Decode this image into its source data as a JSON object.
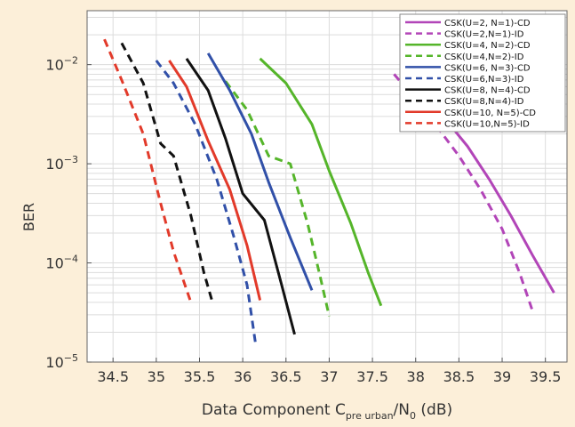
{
  "chart_data": {
    "type": "line",
    "title": "",
    "xlabel": "Data Component C",
    "xlabel_sub": "pre urban",
    "xlabel_mid": "/N",
    "xlabel_sub2": "0",
    "xlabel_end": " (dB)",
    "ylabel": "BER",
    "xlim": [
      34.2,
      39.75
    ],
    "ylim": [
      1e-05,
      0.035
    ],
    "yscale": "log",
    "grid": true,
    "legend_position": "top-right",
    "xticks": [
      34.5,
      35,
      35.5,
      36,
      36.5,
      37,
      37.5,
      38,
      38.5,
      39,
      39.5
    ],
    "xtick_labels": [
      "34.5",
      "35",
      "35.5",
      "36",
      "36.5",
      "37",
      "37.5",
      "38",
      "38.5",
      "39",
      "39.5"
    ],
    "yticks": [
      {
        "value": 1e-05,
        "base": "10",
        "exp": "−5"
      },
      {
        "value": 0.0001,
        "base": "10",
        "exp": "−4"
      },
      {
        "value": 0.001,
        "base": "10",
        "exp": "−3"
      },
      {
        "value": 0.01,
        "base": "10",
        "exp": "−2"
      }
    ],
    "series": [
      {
        "name": "CSK(U=2, N=1)-CD",
        "color": "#b245b8",
        "dash": "solid",
        "x": [
          37.85,
          38.2,
          38.6,
          38.85,
          39.1,
          39.35,
          39.6
        ],
        "y": [
          0.009,
          0.004,
          0.0015,
          0.0007,
          0.0003,
          0.00012,
          5e-05
        ]
      },
      {
        "name": "CSK(U=2,N=1)-ID",
        "color": "#b245b8",
        "dash": "dashed",
        "x": [
          37.75,
          38.1,
          38.5,
          38.75,
          39.0,
          39.2,
          39.35
        ],
        "y": [
          0.008,
          0.0035,
          0.0012,
          0.00055,
          0.00022,
          8e-05,
          3.3e-05
        ]
      },
      {
        "name": "CSK(U=4, N=2)-CD",
        "color": "#55b52a",
        "dash": "solid",
        "x": [
          36.2,
          36.5,
          36.8,
          37.0,
          37.25,
          37.45,
          37.6
        ],
        "y": [
          0.0115,
          0.0065,
          0.0025,
          0.00085,
          0.00025,
          8e-05,
          3.7e-05
        ]
      },
      {
        "name": "CSK(U=4,N=2)-ID",
        "color": "#55b52a",
        "dash": "dashed",
        "x": [
          35.8,
          36.05,
          36.3,
          36.55,
          36.75,
          36.9,
          37.0
        ],
        "y": [
          0.0068,
          0.0035,
          0.0012,
          0.001,
          0.00025,
          7e-05,
          2.9e-05
        ]
      },
      {
        "name": "CSK(U=6, N=3)-CD",
        "color": "#3150a8",
        "dash": "solid",
        "x": [
          35.6,
          35.85,
          36.1,
          36.3,
          36.55,
          36.8
        ],
        "y": [
          0.013,
          0.0055,
          0.002,
          0.00065,
          0.00018,
          5.3e-05
        ]
      },
      {
        "name": "CSK(U=6,N=3)-ID",
        "color": "#3150a8",
        "dash": "dashed",
        "x": [
          35.0,
          35.2,
          35.45,
          35.7,
          35.9,
          36.05,
          36.15
        ],
        "y": [
          0.011,
          0.0065,
          0.0025,
          0.0007,
          0.00018,
          6e-05,
          1.5e-05
        ]
      },
      {
        "name": "CSK(U=8, N=4)-CD",
        "color": "#111111",
        "dash": "solid",
        "x": [
          35.35,
          35.6,
          35.8,
          36.0,
          36.25,
          36.45,
          36.6
        ],
        "y": [
          0.0115,
          0.0055,
          0.0018,
          0.0005,
          0.00027,
          6e-05,
          1.9e-05
        ]
      },
      {
        "name": "CSK(U=8,N=4)-ID",
        "color": "#111111",
        "dash": "dashed",
        "x": [
          34.6,
          34.85,
          35.05,
          35.2,
          35.4,
          35.55,
          35.65
        ],
        "y": [
          0.0165,
          0.0065,
          0.0016,
          0.0012,
          0.0003,
          8e-05,
          4e-05
        ]
      },
      {
        "name": "CSK(U=10, N=5)-CD",
        "color": "#e23a2a",
        "dash": "solid",
        "x": [
          35.15,
          35.35,
          35.6,
          35.85,
          36.05,
          36.2
        ],
        "y": [
          0.011,
          0.006,
          0.0017,
          0.00055,
          0.00015,
          4.2e-05
        ]
      },
      {
        "name": "CSK(U=10,N=5)-ID",
        "color": "#e23a2a",
        "dash": "dashed",
        "x": [
          34.4,
          34.6,
          34.85,
          35.05,
          35.2,
          35.4
        ],
        "y": [
          0.018,
          0.007,
          0.002,
          0.0004,
          0.00013,
          4e-05
        ]
      }
    ]
  }
}
